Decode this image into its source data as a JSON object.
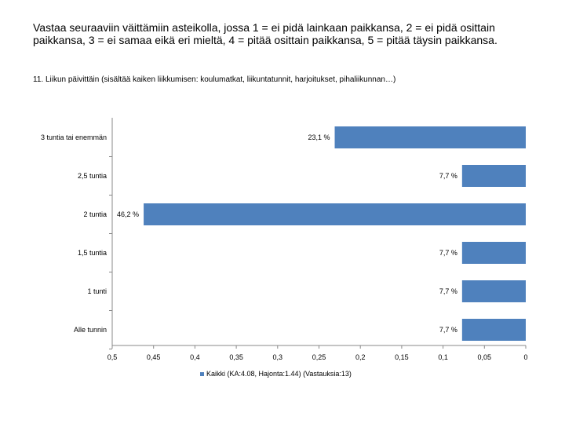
{
  "title": "Vastaa seuraaviin väittämiin asteikolla, jossa 1 = ei pidä lainkaan paikkansa, 2 = ei pidä osittain paikkansa, 3 = ei samaa eikä eri mieltä, 4 = pitää osittain paikkansa, 5 = pitää täysin paikkansa.",
  "question": "11. Liikun päivittäin (sisältää kaiken liikkumisen: koulumatkat, liikuntatunnit, harjoitukset, pihaliikunnan…)",
  "colors": {
    "bar": "#4f81bd"
  },
  "chart_data": {
    "type": "bar",
    "orientation": "horizontal",
    "x_reversed": true,
    "categories": [
      "3 tuntia tai enemmän",
      "2,5 tuntia",
      "2 tuntia",
      "1,5 tuntia",
      "1 tunti",
      "Alle tunnin"
    ],
    "values": [
      0.231,
      0.077,
      0.462,
      0.077,
      0.077,
      0.077
    ],
    "value_labels": [
      "23,1 %",
      "7,7 %",
      "46,2 %",
      "7,7 %",
      "7,7 %",
      "7,7 %"
    ],
    "xlim": [
      0.5,
      0
    ],
    "x_ticks": [
      0.5,
      0.45,
      0.4,
      0.35,
      0.3,
      0.25,
      0.2,
      0.15,
      0.1,
      0.05,
      0
    ],
    "x_tick_labels": [
      "0,5",
      "0,45",
      "0,4",
      "0,35",
      "0,3",
      "0,25",
      "0,2",
      "0,15",
      "0,1",
      "0,05",
      "0"
    ],
    "legend": [
      "Kaikki (KA:4.08, Hajonta:1.44) (Vastauksia:13)"
    ],
    "grid": false
  }
}
